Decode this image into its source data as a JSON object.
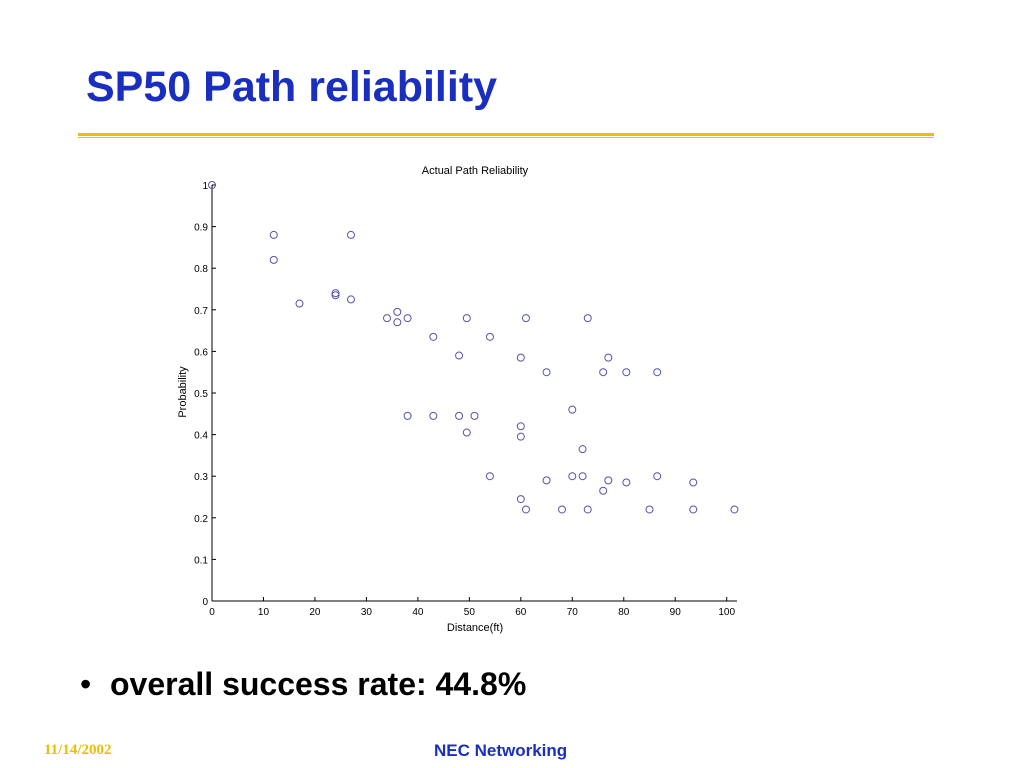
{
  "slide": {
    "title": "SP50 Path reliability",
    "bullet_char": "•",
    "bullet": "overall success rate: 44.8%",
    "footer_date": "11/14/2002",
    "footer_org": "NEC Networking"
  },
  "colors": {
    "title": "#1a2fbf",
    "rule": "#e8c000",
    "footer_date": "#e8c000",
    "marker": "#5555aa"
  },
  "chart_data": {
    "type": "scatter",
    "title": "Actual Path Reliability",
    "xlabel": "Distance(ft)",
    "ylabel": "Probability",
    "xlim": [
      0,
      102
    ],
    "ylim": [
      0,
      1
    ],
    "xticks": [
      0,
      10,
      20,
      30,
      40,
      50,
      60,
      70,
      80,
      90,
      100
    ],
    "yticks": [
      0,
      0.1,
      0.2,
      0.3,
      0.4,
      0.5,
      0.6,
      0.7,
      0.8,
      0.9,
      1
    ],
    "marker": "circle",
    "grid": false,
    "points": [
      [
        0,
        1.0
      ],
      [
        12,
        0.88
      ],
      [
        12,
        0.82
      ],
      [
        17,
        0.715
      ],
      [
        24,
        0.74
      ],
      [
        24,
        0.735
      ],
      [
        27,
        0.88
      ],
      [
        27,
        0.725
      ],
      [
        34,
        0.68
      ],
      [
        36,
        0.695
      ],
      [
        36,
        0.67
      ],
      [
        38,
        0.68
      ],
      [
        38,
        0.445
      ],
      [
        43,
        0.635
      ],
      [
        43,
        0.445
      ],
      [
        48,
        0.59
      ],
      [
        48,
        0.445
      ],
      [
        49.5,
        0.68
      ],
      [
        49.5,
        0.405
      ],
      [
        51,
        0.445
      ],
      [
        54,
        0.635
      ],
      [
        54,
        0.3
      ],
      [
        60,
        0.585
      ],
      [
        60,
        0.42
      ],
      [
        60,
        0.395
      ],
      [
        60,
        0.245
      ],
      [
        61,
        0.68
      ],
      [
        61,
        0.22
      ],
      [
        65,
        0.55
      ],
      [
        65,
        0.29
      ],
      [
        68,
        0.22
      ],
      [
        70,
        0.46
      ],
      [
        70,
        0.3
      ],
      [
        72,
        0.365
      ],
      [
        72,
        0.3
      ],
      [
        73,
        0.68
      ],
      [
        73,
        0.22
      ],
      [
        76,
        0.55
      ],
      [
        76,
        0.265
      ],
      [
        77,
        0.585
      ],
      [
        77,
        0.29
      ],
      [
        80.5,
        0.55
      ],
      [
        80.5,
        0.285
      ],
      [
        85,
        0.22
      ],
      [
        86.5,
        0.55
      ],
      [
        86.5,
        0.3
      ],
      [
        93.5,
        0.285
      ],
      [
        93.5,
        0.22
      ],
      [
        101.5,
        0.22
      ]
    ]
  }
}
